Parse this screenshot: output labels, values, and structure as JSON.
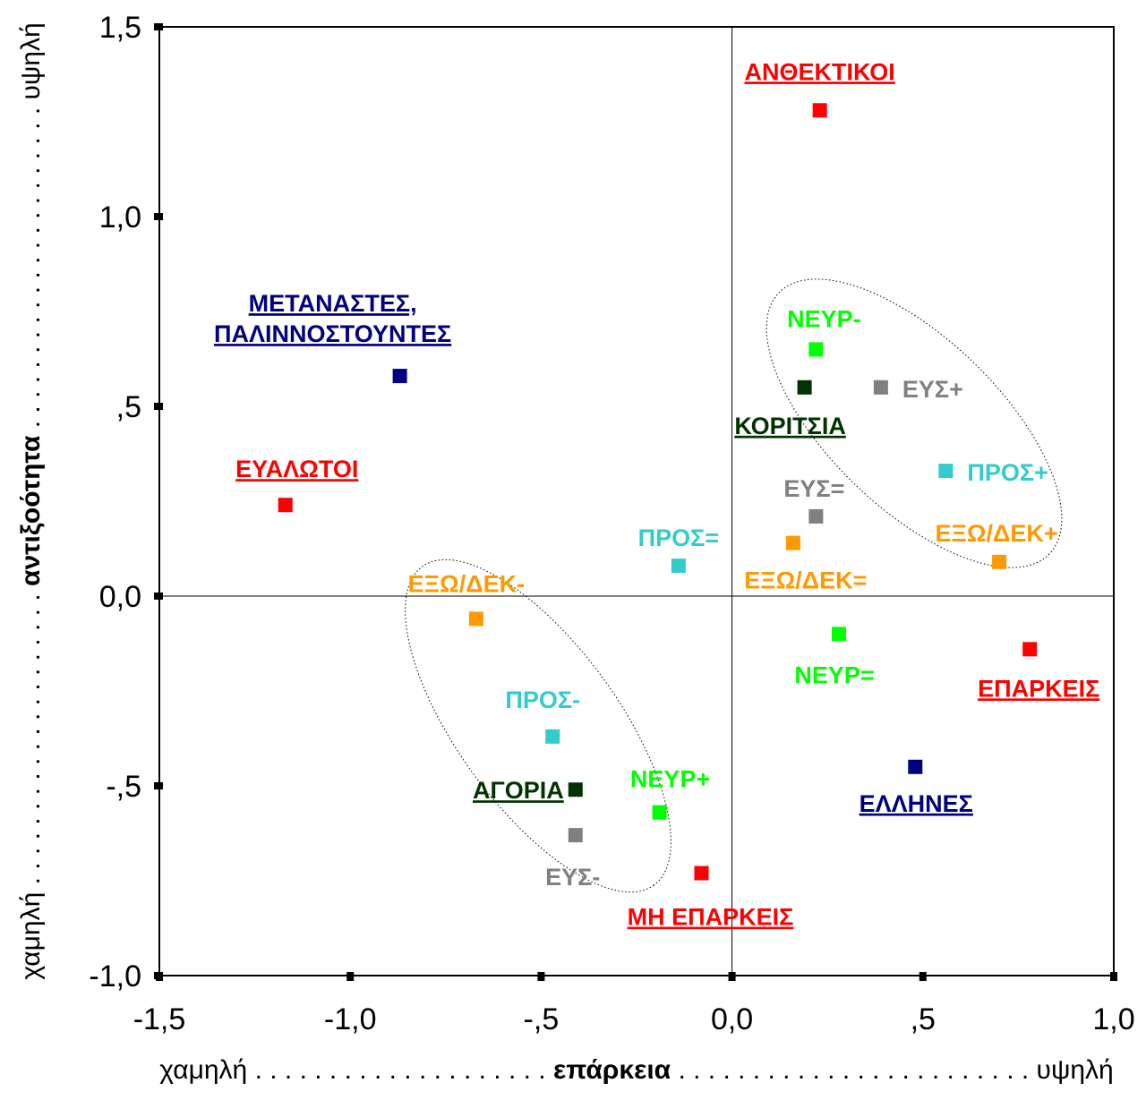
{
  "chart_data": {
    "type": "scatter",
    "xlim": [
      -1.5,
      1.0
    ],
    "ylim": [
      -1.0,
      1.5
    ],
    "x_ticks": [
      {
        "value": -1.5,
        "label": "-1,5"
      },
      {
        "value": -1.0,
        "label": "-1,0"
      },
      {
        "value": -0.5,
        "label": "-,5"
      },
      {
        "value": 0.0,
        "label": "0,0"
      },
      {
        "value": 0.5,
        "label": ",5"
      },
      {
        "value": 1.0,
        "label": "1,0"
      }
    ],
    "y_ticks": [
      {
        "value": 1.5,
        "label": "1,5"
      },
      {
        "value": 1.0,
        "label": "1,0"
      },
      {
        "value": 0.5,
        "label": ",5"
      },
      {
        "value": 0.0,
        "label": "0,0"
      },
      {
        "value": -0.5,
        "label": "-,5"
      },
      {
        "value": -1.0,
        "label": "-1,0"
      }
    ],
    "xlabel": {
      "left": "χαμηλή",
      "center": "επάρκεια",
      "right": "υψηλή"
    },
    "ylabel": {
      "left": "χαμηλή",
      "center": "αντιξοότητα",
      "right": "υψηλή"
    },
    "reference_lines": {
      "x": 0.0,
      "y": 0.0
    },
    "points": [
      {
        "label": "ΑΝΘΕΚΤΙΚΟΙ",
        "x": 0.23,
        "y": 1.28,
        "color": "#ff0000",
        "underline": true
      },
      {
        "label": "ΜΕΤΑΝΑΣΤΕΣ, ΠΑΛΙΝΝΟΣΤΟΥΝΤΕΣ",
        "x": -0.87,
        "y": 0.58,
        "color": "#000080",
        "underline": true
      },
      {
        "label": "ΕΥΑΛΩΤΟΙ",
        "x": -1.17,
        "y": 0.24,
        "color": "#ff0000",
        "underline": true
      },
      {
        "label": "ΝΕΥΡ-",
        "x": 0.22,
        "y": 0.65,
        "color": "#00ff00",
        "underline": false
      },
      {
        "label": "ΚΟΡΙΤΣΙΑ",
        "x": 0.19,
        "y": 0.55,
        "color": "#003300",
        "underline": true
      },
      {
        "label": "ΕΥΣ+",
        "x": 0.39,
        "y": 0.55,
        "color": "#808080",
        "underline": false
      },
      {
        "label": "ΠΡΟΣ+",
        "x": 0.56,
        "y": 0.33,
        "color": "#33cccc",
        "underline": false
      },
      {
        "label": "ΕΥΣ=",
        "x": 0.22,
        "y": 0.21,
        "color": "#808080",
        "underline": false
      },
      {
        "label": "ΕΞΩ/ΔΕΚ=",
        "x": 0.16,
        "y": 0.14,
        "color": "#ff9900",
        "underline": false
      },
      {
        "label": "ΕΞΩ/ΔΕΚ+",
        "x": 0.7,
        "y": 0.09,
        "color": "#ff9900",
        "underline": false
      },
      {
        "label": "ΠΡΟΣ=",
        "x": -0.14,
        "y": 0.08,
        "color": "#33cccc",
        "underline": false
      },
      {
        "label": "ΕΞΩ/ΔΕΚ-",
        "x": -0.67,
        "y": -0.06,
        "color": "#ff9900",
        "underline": false
      },
      {
        "label": "ΝΕΥΡ=",
        "x": 0.28,
        "y": -0.1,
        "color": "#00ff00",
        "underline": false
      },
      {
        "label": "ΕΠΑΡΚΕΙΣ",
        "x": 0.78,
        "y": -0.14,
        "color": "#ff0000",
        "underline": true
      },
      {
        "label": "ΠΡΟΣ-",
        "x": -0.47,
        "y": -0.37,
        "color": "#33cccc",
        "underline": false
      },
      {
        "label": "ΕΛΛΗΝΕΣ",
        "x": 0.48,
        "y": -0.45,
        "color": "#000080",
        "underline": true
      },
      {
        "label": "ΑΓΟΡΙΑ",
        "x": -0.41,
        "y": -0.51,
        "color": "#003300",
        "underline": true
      },
      {
        "label": "ΝΕΥΡ+",
        "x": -0.19,
        "y": -0.57,
        "color": "#00ff00",
        "underline": false
      },
      {
        "label": "ΕΥΣ-",
        "x": -0.41,
        "y": -0.63,
        "color": "#808080",
        "underline": false
      },
      {
        "label": "ΜΗ ΕΠΑΡΚΕΙΣ",
        "x": -0.08,
        "y": -0.73,
        "color": "#ff0000",
        "underline": true
      }
    ],
    "groups": [
      {
        "name": "upper-right-cluster"
      },
      {
        "name": "lower-left-cluster"
      }
    ]
  }
}
